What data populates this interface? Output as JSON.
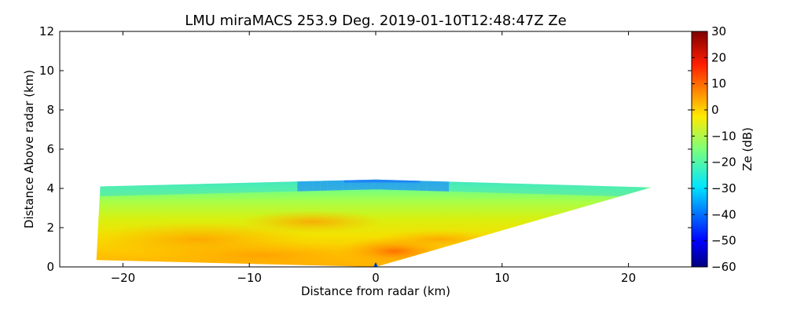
{
  "chart_data": {
    "type": "heatmap",
    "title": "LMU miraMACS 253.9 Deg. 2019-01-10T12:48:47Z  Ze",
    "xlabel": "Distance from radar (km)",
    "ylabel": "Distance Above radar  (km)",
    "xlim": [
      -25,
      25
    ],
    "ylim": [
      0,
      12
    ],
    "xticks": [
      -20,
      -10,
      0,
      10,
      20
    ],
    "yticks": [
      0,
      2,
      4,
      6,
      8,
      10,
      12
    ],
    "colorbar": {
      "label": "Ze (dB)",
      "range": [
        -60,
        30
      ],
      "ticks": [
        -60,
        -50,
        -40,
        -30,
        -20,
        -10,
        0,
        10,
        20,
        30
      ],
      "colormap": "jet"
    },
    "scan_region": {
      "polygon_km": [
        [
          -22.1,
          0.35
        ],
        [
          -21.8,
          4.1
        ],
        [
          0,
          4.45
        ],
        [
          21.8,
          4.05
        ],
        [
          0,
          0
        ]
      ],
      "echo_top_km": 4.4,
      "echo_top_ze_db": -35,
      "bright_core_ze_db": 10,
      "typical_ze_db": -5
    }
  }
}
